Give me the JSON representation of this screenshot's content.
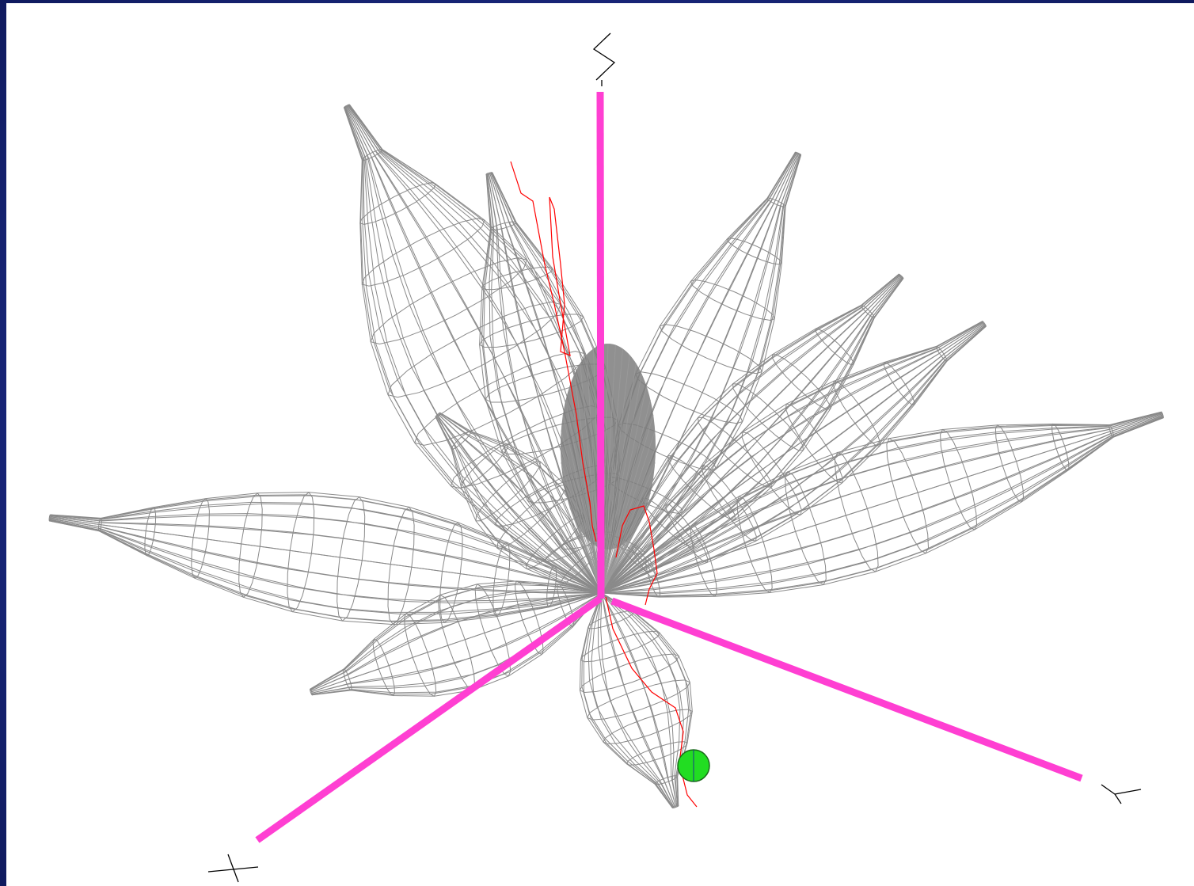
{
  "colors": {
    "background_frame": "#1b2a82",
    "viewport": "#ffffff",
    "mesh": "#8a8a8a",
    "mesh_core": "#7a7a7a",
    "axis": "#ff3fd2",
    "trace": "#ff0000",
    "marker": "#22dd22",
    "axis_label": "#000000"
  },
  "axes": [
    {
      "name": "x-axis",
      "label_glyph": "x"
    },
    {
      "name": "y-axis",
      "label_glyph": "y"
    },
    {
      "name": "z-axis",
      "label_glyph": "z"
    }
  ],
  "icons": {
    "marker": "green-dot-icon"
  }
}
